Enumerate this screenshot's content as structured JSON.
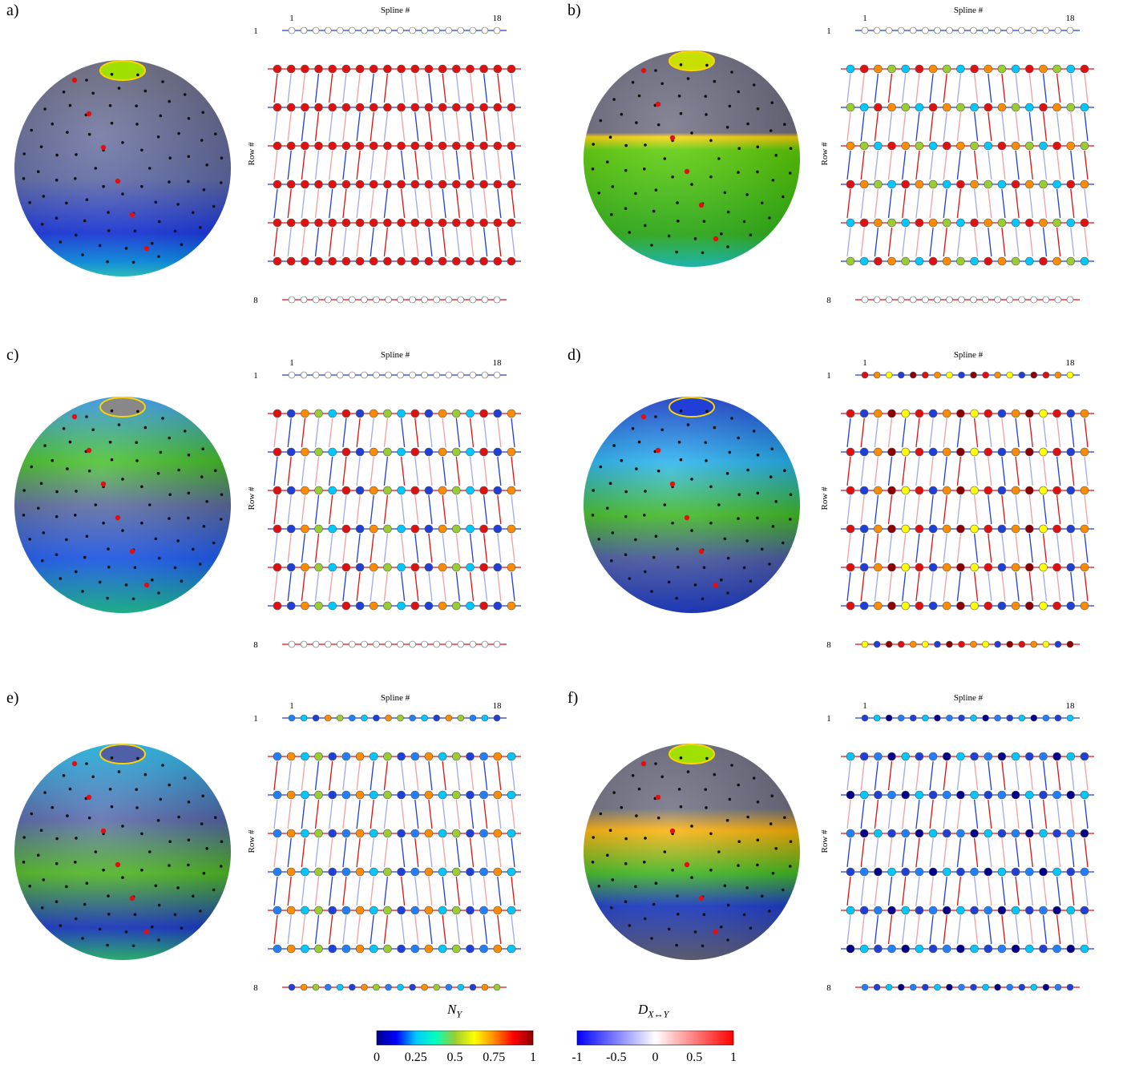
{
  "panels": [
    {
      "id": "a",
      "label": "a)"
    },
    {
      "id": "b",
      "label": "b)"
    },
    {
      "id": "c",
      "label": "c)"
    },
    {
      "id": "d",
      "label": "d)"
    },
    {
      "id": "e",
      "label": "e)"
    },
    {
      "id": "f",
      "label": "f)"
    }
  ],
  "network_labels": {
    "spline_title": "Spline #",
    "spline_first": "1",
    "spline_last": "18",
    "row_title": "Row #",
    "row_first": "1",
    "row_last": "8"
  },
  "colorbars": {
    "ny": {
      "title": "N",
      "title_sub": "Y",
      "ticks": [
        "0",
        "0.25",
        "0.5",
        "0.75",
        "1"
      ],
      "colors": [
        "#00008b",
        "#0000ff",
        "#00c8ff",
        "#00ffbf",
        "#9acd32",
        "#ffff00",
        "#ff8c00",
        "#ff0000",
        "#8b0000"
      ]
    },
    "d": {
      "title": "D",
      "title_sub": "X↔Y",
      "ticks": [
        "-1",
        "-0.5",
        "0",
        "0.5",
        "1"
      ],
      "colors": [
        "#0000ff",
        "#ffffff",
        "#ff0000"
      ]
    }
  },
  "colors": {
    "gray_region": "#6b6b80",
    "blue": "#1f3fd6",
    "red": "#e01010",
    "node_dark": "#111111"
  }
}
